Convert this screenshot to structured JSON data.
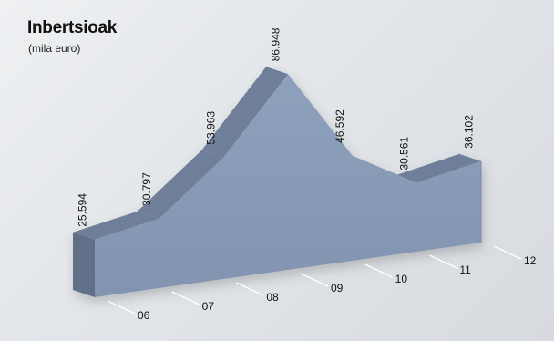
{
  "chart_data": {
    "type": "area",
    "title": "Inbertsioak",
    "subtitle": "(mila euro)",
    "categories": [
      "06",
      "07",
      "08",
      "09",
      "10",
      "11",
      "12"
    ],
    "values": [
      25.594,
      30.797,
      53.963,
      86.948,
      46.592,
      30.561,
      36.102
    ],
    "value_labels": [
      "25.594",
      "30.797",
      "53.963",
      "86.948",
      "46.592",
      "30.561",
      "36.102"
    ],
    "ylim": [
      0,
      95
    ],
    "grid": false,
    "legend": "none",
    "style": "3d",
    "colors": {
      "front": "#8c9fba",
      "top": "#6f7f99",
      "side": "#5f6f88",
      "background": "#e3e6ea"
    }
  }
}
